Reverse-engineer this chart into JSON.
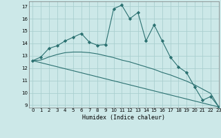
{
  "title": "",
  "xlabel": "Humidex (Indice chaleur)",
  "bg_color": "#cce8e8",
  "grid_color": "#aacfcf",
  "line_color": "#2a7070",
  "xlim": [
    -0.5,
    23
  ],
  "ylim": [
    8.8,
    17.4
  ],
  "yticks": [
    9,
    10,
    11,
    12,
    13,
    14,
    15,
    16,
    17
  ],
  "xticks": [
    0,
    1,
    2,
    3,
    4,
    5,
    6,
    7,
    8,
    9,
    10,
    11,
    12,
    13,
    14,
    15,
    16,
    17,
    18,
    19,
    20,
    21,
    22,
    23
  ],
  "line1_x": [
    0,
    1,
    2,
    3,
    4,
    5,
    6,
    7,
    8,
    9,
    10,
    11,
    12,
    13,
    14,
    15,
    16,
    17,
    18,
    19,
    20,
    21,
    22,
    23
  ],
  "line1_y": [
    12.6,
    12.9,
    13.6,
    13.8,
    14.2,
    14.5,
    14.8,
    14.1,
    13.85,
    13.9,
    16.8,
    17.1,
    16.0,
    16.5,
    14.2,
    15.5,
    14.2,
    12.9,
    12.1,
    11.65,
    10.5,
    9.4,
    9.7,
    8.85
  ],
  "line2_x": [
    0,
    1,
    2,
    3,
    4,
    5,
    6,
    7,
    8,
    9,
    10,
    11,
    12,
    13,
    14,
    15,
    16,
    17,
    18,
    19,
    20,
    21,
    22,
    23
  ],
  "line2_y": [
    12.6,
    12.65,
    12.9,
    13.1,
    13.25,
    13.3,
    13.3,
    13.25,
    13.15,
    13.0,
    12.85,
    12.65,
    12.5,
    12.3,
    12.1,
    11.9,
    11.65,
    11.45,
    11.2,
    10.95,
    10.65,
    10.3,
    9.95,
    8.85
  ],
  "line3_x": [
    0,
    23
  ],
  "line3_y": [
    12.6,
    8.85
  ]
}
